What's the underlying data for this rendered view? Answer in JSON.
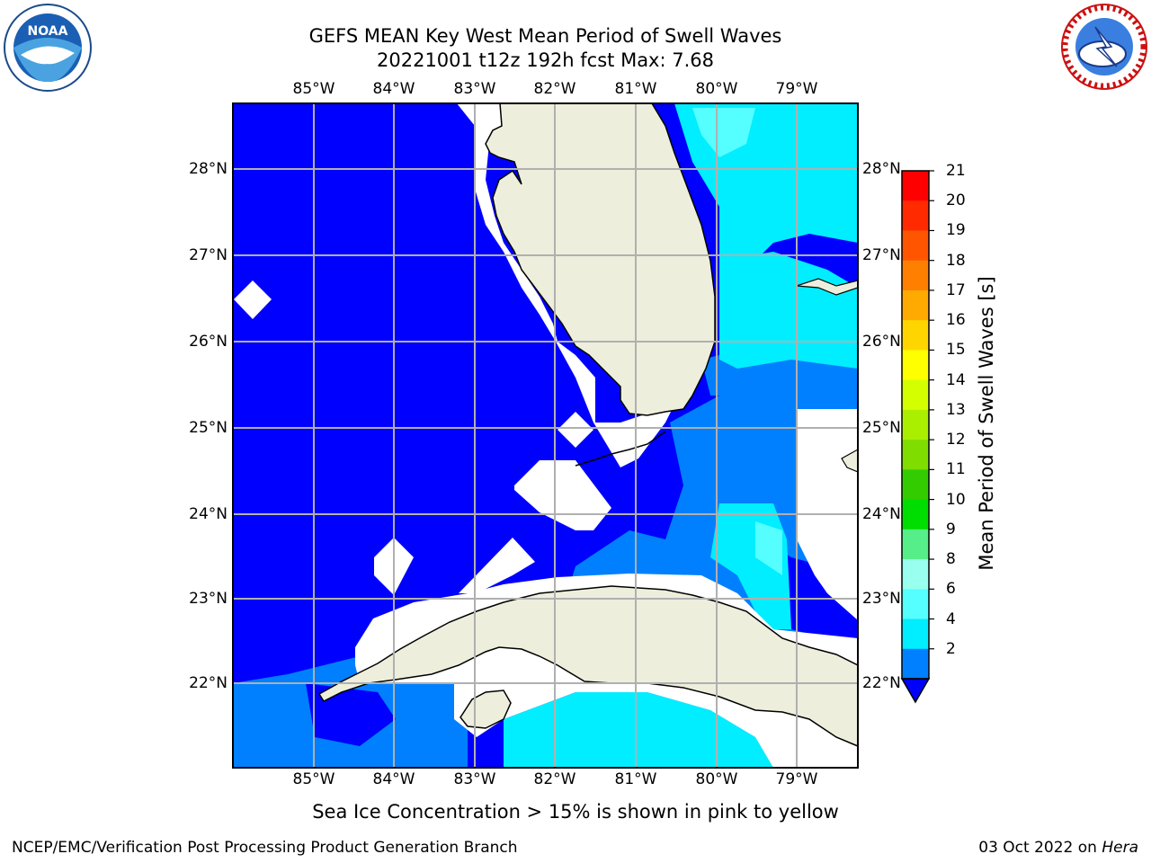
{
  "title_line1": "GEFS MEAN Key West Mean Period of Swell Waves",
  "title_line2": "20221001 t12z 192h fcst   Max: 7.68",
  "lon_labels": [
    "85°W",
    "84°W",
    "83°W",
    "82°W",
    "81°W",
    "80°W",
    "79°W"
  ],
  "lat_labels": [
    "28°N",
    "27°N",
    "26°N",
    "25°N",
    "24°N",
    "23°N",
    "22°N"
  ],
  "colorbar": {
    "label": "Mean Period of Swell Waves [s]",
    "ticks": [
      "21",
      "20",
      "19",
      "18",
      "17",
      "16",
      "15",
      "14",
      "13",
      "12",
      "11",
      "10",
      "9",
      "8",
      "6",
      "4",
      "2"
    ],
    "colors": [
      "#ff0000",
      "#ff2a00",
      "#ff5500",
      "#ff8000",
      "#ffaa00",
      "#ffd500",
      "#ffff00",
      "#d4ff00",
      "#aaee00",
      "#7fdd00",
      "#33cc00",
      "#00dd00",
      "#55ee88",
      "#99ffee",
      "#55ffff",
      "#00eeff",
      "#0080ff"
    ],
    "under_color": "#0000ff"
  },
  "logos": {
    "noaa": "NOAA",
    "nws_ring": "NATIONAL WEATHER SERVICE"
  },
  "caption": "Sea Ice Concentration > 15% is shown in pink to yellow",
  "footer_left": "NCEP/EMC/Verification Post Processing Product Generation Branch",
  "footer_right_date": "03 Oct 2022 on ",
  "footer_right_host": "Hera",
  "colors": {
    "deep_blue": "#0000ff",
    "mid_blue": "#0080ff",
    "cyan": "#00eeff",
    "light_cyan": "#55ffff",
    "land": "#eeeedd",
    "grid": "#b0b0b0"
  }
}
